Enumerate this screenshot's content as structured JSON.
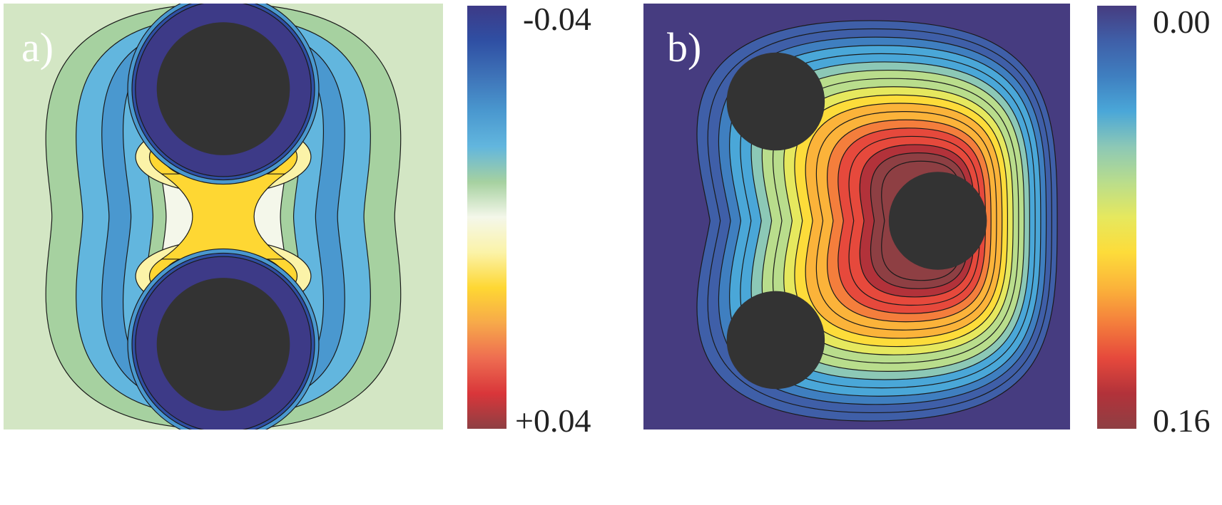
{
  "chart_data": [
    {
      "type": "heatmap",
      "panel_label": "a)",
      "colorbar": {
        "min_label": "-0.04",
        "max_label": "+0.04",
        "range": [
          -0.04,
          0.04
        ]
      },
      "colors": [
        "#3d3a87",
        "#2f4fa3",
        "#3e73b8",
        "#4a98cf",
        "#62b6de",
        "#a6d1a0",
        "#f4f7ea",
        "#fbf3a8",
        "#fed733",
        "#f7a94a",
        "#ee6d51",
        "#d9363a",
        "#8e3f43"
      ],
      "particles": [
        {
          "cx": 0.5,
          "cy": 0.2,
          "r": 0.2
        },
        {
          "cx": 0.5,
          "cy": 0.8,
          "r": 0.2
        }
      ]
    },
    {
      "type": "heatmap",
      "panel_label": "b)",
      "colorbar": {
        "min_label": "0.00",
        "max_label": "0.16",
        "range": [
          0.0,
          0.16
        ]
      },
      "colors": [
        "#463c80",
        "#3f5fa8",
        "#3f7fc0",
        "#4aa7d8",
        "#8cc8b6",
        "#b9dd8c",
        "#e6e85e",
        "#fddc3a",
        "#fbb33a",
        "#f47e3c",
        "#e6493c",
        "#b2323a",
        "#8e3f43"
      ],
      "particles": [
        {
          "cx": 0.31,
          "cy": 0.23,
          "r": 0.115
        },
        {
          "cx": 0.69,
          "cy": 0.51,
          "r": 0.115
        },
        {
          "cx": 0.31,
          "cy": 0.79,
          "r": 0.115
        }
      ]
    }
  ]
}
